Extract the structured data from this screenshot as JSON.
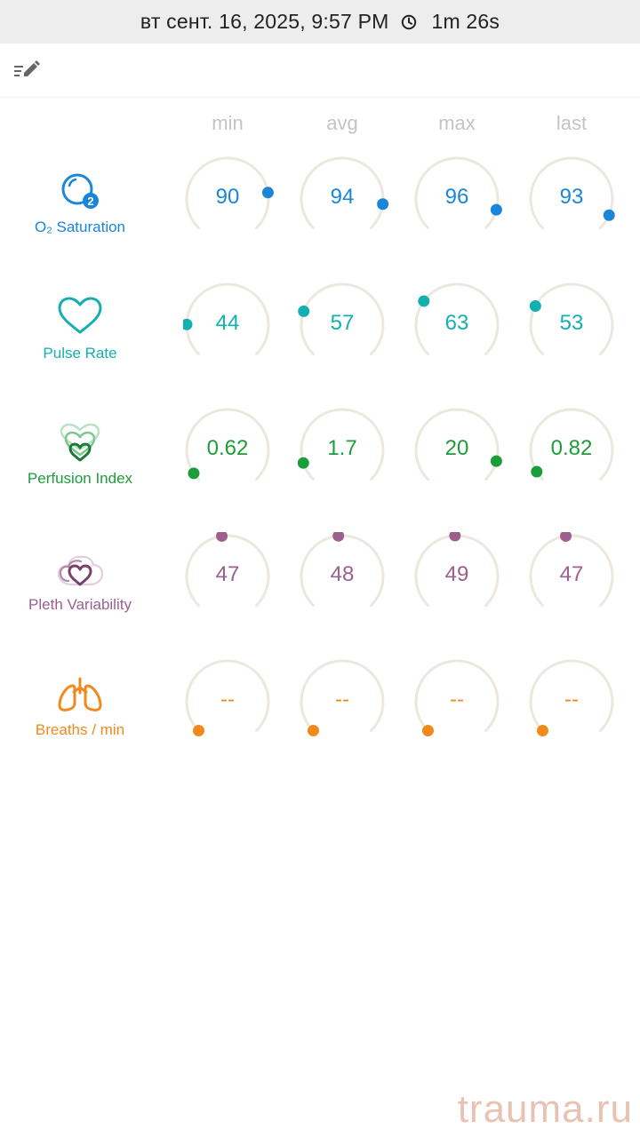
{
  "status_bar": {
    "datetime": "вт сент. 16, 2025, 9:57 PM",
    "duration": "1m 26s",
    "clock_icon": "clock-icon"
  },
  "toolbar": {
    "edit_icon": "edit-list-icon"
  },
  "columns": [
    "min",
    "avg",
    "max",
    "last"
  ],
  "metrics": [
    {
      "key": "o2",
      "label": "O₂ Saturation",
      "color": "#1a86d9",
      "icon": "o2-icon",
      "values": [
        "90",
        "94",
        "96",
        "93"
      ],
      "levels": [
        0.8,
        0.86,
        0.89,
        0.92
      ]
    },
    {
      "key": "pulse",
      "label": "Pulse Rate",
      "color": "#14afb0",
      "icon": "heart-icon",
      "values": [
        "44",
        "57",
        "63",
        "53"
      ],
      "levels": [
        0.17,
        0.24,
        0.3,
        0.27
      ]
    },
    {
      "key": "pi",
      "label": "Perfusion Index",
      "color": "#1b9e3a",
      "icon": "perfusion-icon",
      "values": [
        "0.62",
        "1.7",
        "20",
        "0.82"
      ],
      "levels": [
        0.04,
        0.1,
        0.89,
        0.05
      ]
    },
    {
      "key": "pvi",
      "label": "Pleth Variability",
      "color": "#9c5f8e",
      "icon": "pleth-icon",
      "values": [
        "47",
        "48",
        "49",
        "47"
      ],
      "levels": [
        0.47,
        0.48,
        0.49,
        0.47
      ]
    },
    {
      "key": "rr",
      "label": "Breaths / min",
      "color": "#f18a1c",
      "icon": "lungs-icon",
      "values": [
        "--",
        "--",
        "--",
        "--"
      ],
      "levels": [
        0.0,
        0.0,
        0.0,
        0.0
      ]
    }
  ],
  "track_color": "#ece8df",
  "watermark": "trauma.ru"
}
